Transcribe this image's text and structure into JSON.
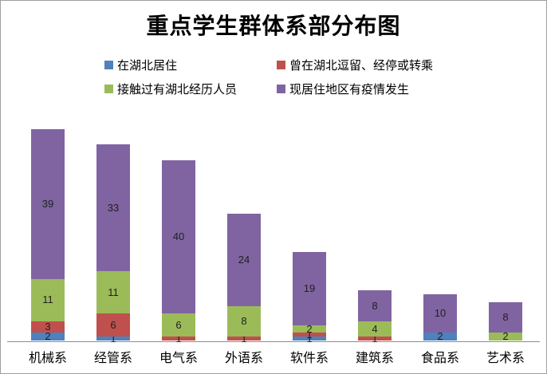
{
  "title": "重点学生群体系部分布图",
  "colors": {
    "background": "#ffffff",
    "border": "#9e9e9e",
    "axis_line": "#8c8c8c",
    "data_label_text": "#1f1f1f",
    "series_blue": "#4f81bd",
    "series_red": "#c0504d",
    "series_green": "#9bbb59",
    "series_purple": "#8064a2"
  },
  "chart_data": {
    "type": "bar",
    "stacked": true,
    "title": "重点学生群体系部分布图",
    "xlabel": "",
    "ylabel": "",
    "ylim": [
      0,
      55
    ],
    "y_axis_visible": false,
    "grid": false,
    "data_labels": true,
    "legend_position": "top",
    "categories": [
      "机械系",
      "经管系",
      "电气系",
      "外语系",
      "软件系",
      "建筑系",
      "食品系",
      "艺术系"
    ],
    "series": [
      {
        "name": "在湖北居住",
        "color": "#4f81bd",
        "values": [
          2,
          1,
          0,
          0,
          1,
          0,
          2,
          0
        ]
      },
      {
        "name": "曾在湖北逗留、经停或转乘",
        "color": "#c0504d",
        "values": [
          3,
          6,
          1,
          1,
          1,
          1,
          0,
          0
        ]
      },
      {
        "name": "接触过有湖北经历人员",
        "color": "#9bbb59",
        "values": [
          11,
          11,
          6,
          8,
          2,
          4,
          0,
          2
        ]
      },
      {
        "name": "现居住地区有疫情发生",
        "color": "#8064a2",
        "values": [
          39,
          33,
          40,
          24,
          19,
          8,
          10,
          8
        ]
      }
    ],
    "category_totals": [
      55,
      51,
      47,
      33,
      23,
      13,
      12,
      10
    ]
  }
}
